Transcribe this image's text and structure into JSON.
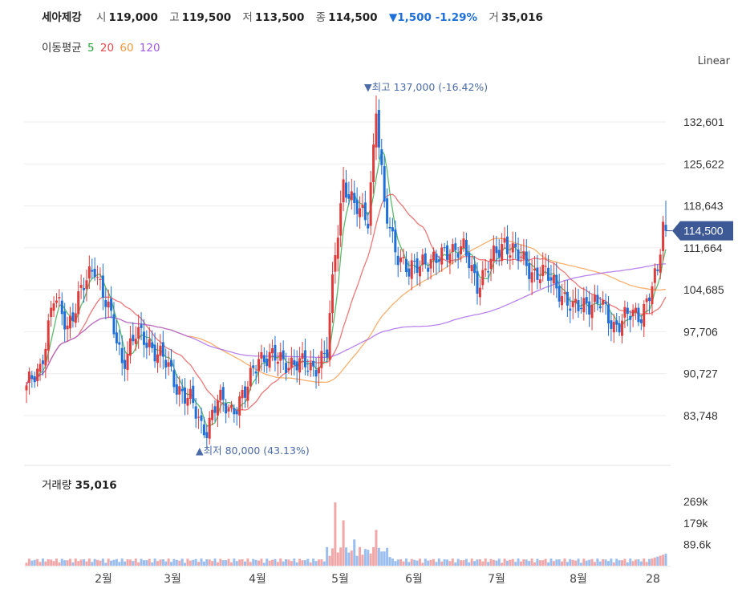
{
  "header": {
    "name": "세아제강",
    "open_label": "시",
    "open": "119,000",
    "high_label": "고",
    "high": "119,500",
    "low_label": "저",
    "low": "113,500",
    "close_label": "종",
    "close": "114,500",
    "change": "▼1,500 -1.29%",
    "volume_label": "거",
    "volume": "35,016"
  },
  "ma_legend": {
    "title": "이동평균",
    "items": [
      {
        "label": "5",
        "color": "#22a33a"
      },
      {
        "label": "20",
        "color": "#e84a4a"
      },
      {
        "label": "60",
        "color": "#f5963c"
      },
      {
        "label": "120",
        "color": "#a05ae6"
      }
    ]
  },
  "scale_label": "Linear",
  "colors": {
    "up": "#e03c3c",
    "down": "#1e6fd9",
    "price_tag": "#3d5a97",
    "annot": "#4a6aa8"
  },
  "chart_data": {
    "type": "candlestick",
    "y_ticks": [
      "132,601",
      "125,622",
      "118,643",
      "111,664",
      "104,685",
      "97,706",
      "90,727",
      "83,748"
    ],
    "y_tick_values": [
      132601,
      125622,
      118643,
      111664,
      104685,
      97706,
      90727,
      83748
    ],
    "x_ticks": [
      "2월",
      "3월",
      "4월",
      "5월",
      "6월",
      "7월",
      "8월",
      "28"
    ],
    "current_price": "114,500",
    "high_annotation": {
      "label": "최고",
      "value": "137,000 (-16.42%)",
      "price": 137000
    },
    "low_annotation": {
      "label": "최저",
      "value": "80,000 (43.13%)",
      "price": 80000
    },
    "volume_label": "거래량",
    "volume_value": "35,016",
    "volume_ticks": [
      "269k",
      "179k",
      "89.6k"
    ],
    "volume_tick_values": [
      269000,
      179000,
      89600
    ],
    "anchors": [
      {
        "d": 0,
        "c": 88000
      },
      {
        "d": 5,
        "c": 92000
      },
      {
        "d": 10,
        "c": 103000
      },
      {
        "d": 15,
        "c": 99000
      },
      {
        "d": 20,
        "c": 104000
      },
      {
        "d": 25,
        "c": 109000
      },
      {
        "d": 30,
        "c": 101000
      },
      {
        "d": 35,
        "c": 93000
      },
      {
        "d": 40,
        "c": 97000
      },
      {
        "d": 45,
        "c": 96000
      },
      {
        "d": 50,
        "c": 93000
      },
      {
        "d": 55,
        "c": 89000
      },
      {
        "d": 60,
        "c": 86000
      },
      {
        "d": 65,
        "c": 81000
      },
      {
        "d": 70,
        "c": 86000
      },
      {
        "d": 75,
        "c": 85000
      },
      {
        "d": 80,
        "c": 87000
      },
      {
        "d": 85,
        "c": 94000
      },
      {
        "d": 90,
        "c": 93000
      },
      {
        "d": 95,
        "c": 93000
      },
      {
        "d": 100,
        "c": 92000
      },
      {
        "d": 105,
        "c": 92000
      },
      {
        "d": 110,
        "c": 94000
      },
      {
        "d": 113,
        "c": 111000
      },
      {
        "d": 116,
        "c": 123000
      },
      {
        "d": 120,
        "c": 118000
      },
      {
        "d": 125,
        "c": 117000
      },
      {
        "d": 128,
        "c": 134000
      },
      {
        "d": 131,
        "c": 118000
      },
      {
        "d": 135,
        "c": 112000
      },
      {
        "d": 140,
        "c": 107000
      },
      {
        "d": 145,
        "c": 110000
      },
      {
        "d": 150,
        "c": 109000
      },
      {
        "d": 155,
        "c": 112000
      },
      {
        "d": 160,
        "c": 111000
      },
      {
        "d": 165,
        "c": 106000
      },
      {
        "d": 170,
        "c": 109000
      },
      {
        "d": 175,
        "c": 113000
      },
      {
        "d": 180,
        "c": 110000
      },
      {
        "d": 185,
        "c": 108000
      },
      {
        "d": 190,
        "c": 107000
      },
      {
        "d": 195,
        "c": 105000
      },
      {
        "d": 200,
        "c": 101000
      },
      {
        "d": 205,
        "c": 103000
      },
      {
        "d": 210,
        "c": 102000
      },
      {
        "d": 215,
        "c": 99000
      },
      {
        "d": 220,
        "c": 100000
      },
      {
        "d": 225,
        "c": 101000
      },
      {
        "d": 228,
        "c": 104000
      },
      {
        "d": 231,
        "c": 107000
      },
      {
        "d": 233,
        "c": 116000
      },
      {
        "d": 234,
        "c": 114500
      }
    ],
    "ma_periods": [
      5,
      20,
      60,
      120
    ]
  }
}
